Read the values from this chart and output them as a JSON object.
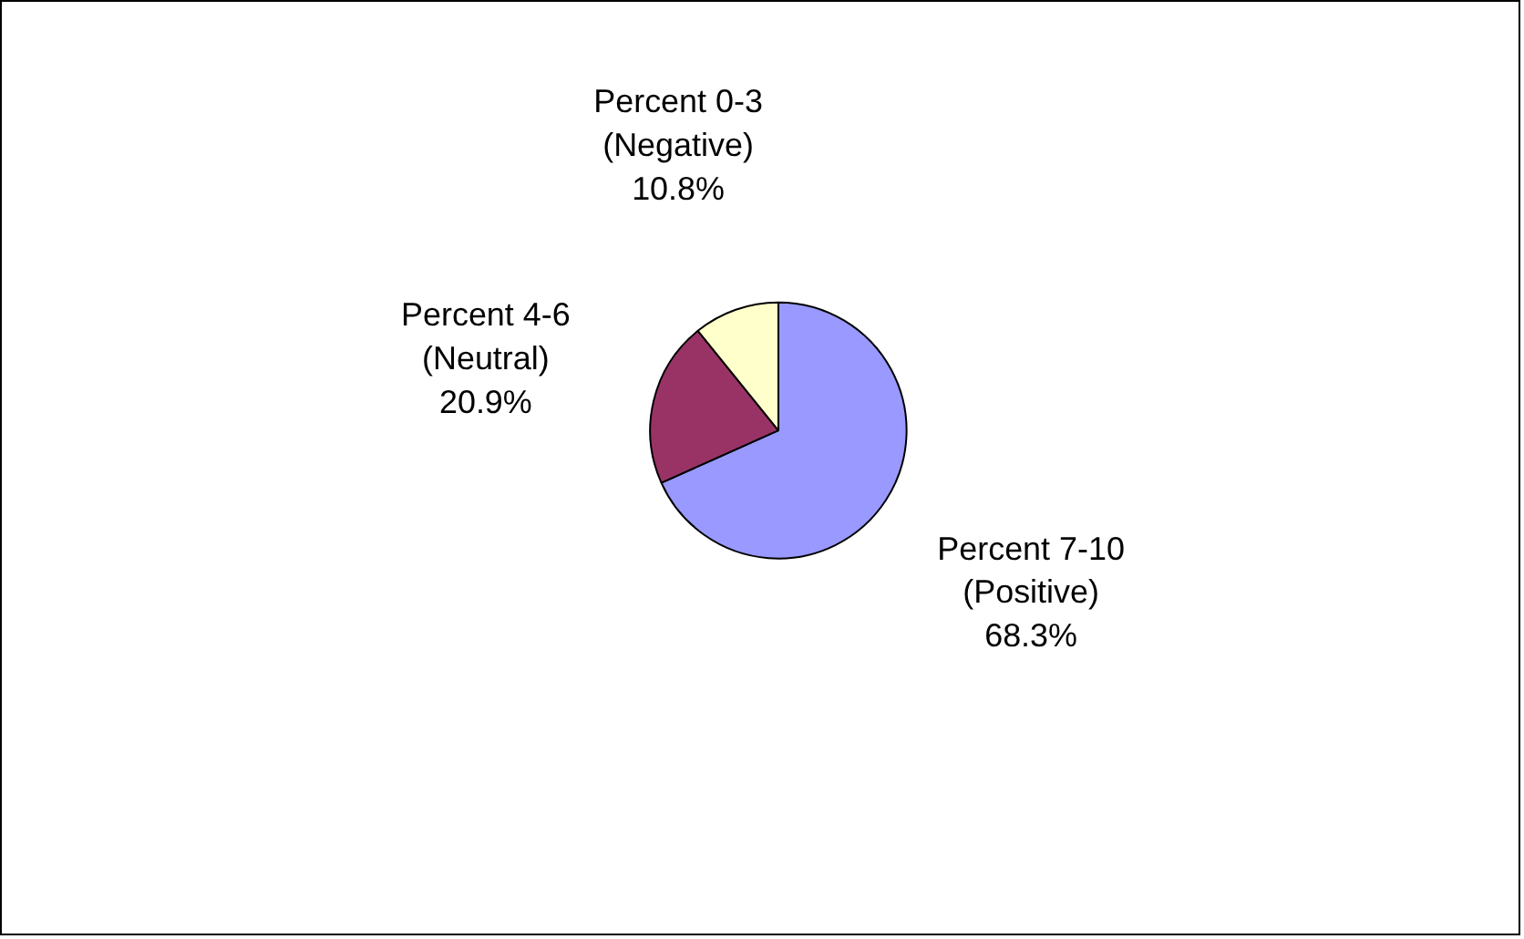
{
  "chart_data": {
    "type": "pie",
    "categories": [
      "Percent 7-10 (Positive)",
      "Percent 4-6 (Neutral)",
      "Percent 0-3 (Negative)"
    ],
    "values": [
      68.3,
      20.9,
      10.8
    ],
    "colors": [
      "#9999ff",
      "#993366",
      "#ffffcc"
    ],
    "value_labels": [
      "68.3%",
      "20.9%",
      "10.8%"
    ],
    "legend": false
  }
}
